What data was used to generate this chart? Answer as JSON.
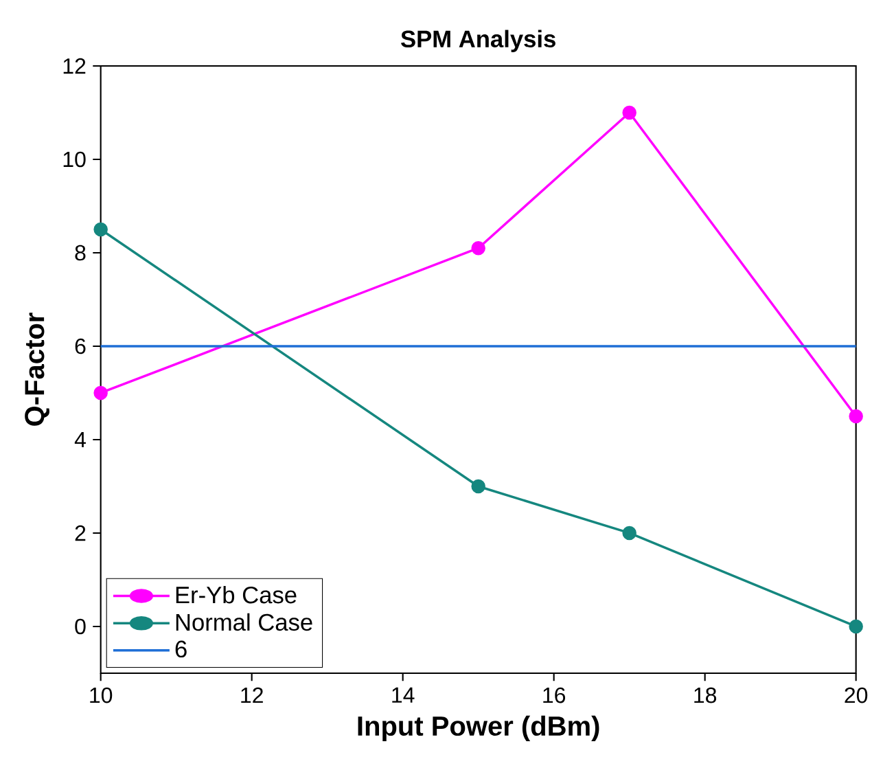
{
  "chart_data": {
    "type": "line",
    "title": "SPM Analysis",
    "xlabel": "Input Power (dBm)",
    "ylabel": "Q-Factor",
    "x": [
      10,
      15,
      17,
      20
    ],
    "series": [
      {
        "name": "Er-Yb Case",
        "color": "#ff00ff",
        "values": [
          5,
          8.1,
          11,
          4.5
        ]
      },
      {
        "name": "Normal Case",
        "color": "#15877f",
        "values": [
          8.5,
          3,
          2,
          0
        ]
      },
      {
        "name": "6",
        "color": "#1f6fd6",
        "x": [
          10,
          20
        ],
        "values": [
          6,
          6
        ],
        "marker": "none"
      }
    ],
    "xlim": [
      10,
      20
    ],
    "xticks": [
      10,
      12,
      14,
      16,
      18,
      20
    ],
    "ylim": [
      -1,
      12
    ],
    "yticks": [
      0,
      2,
      4,
      6,
      8,
      10,
      12
    ],
    "marker": "circle",
    "line_style": "solid",
    "legend": "bottom left",
    "grid": false
  }
}
